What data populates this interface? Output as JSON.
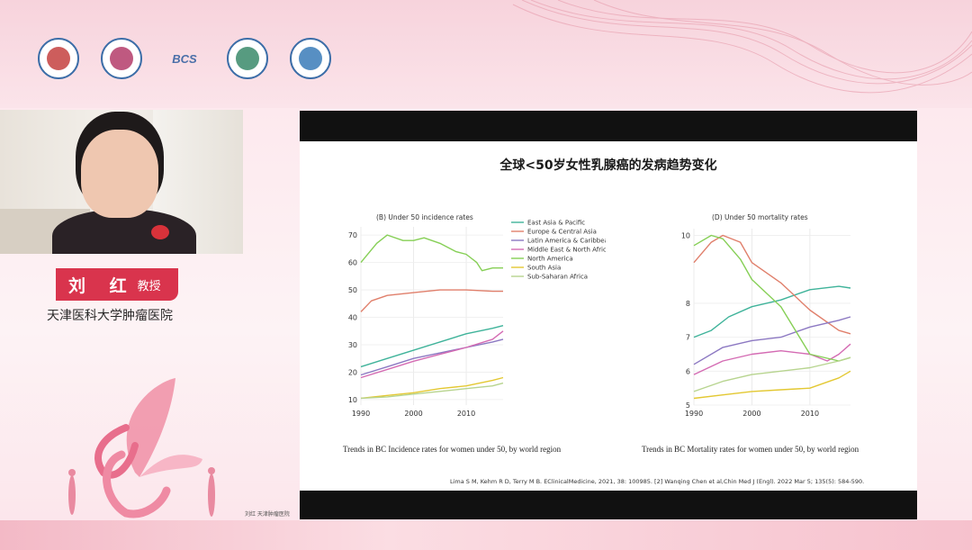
{
  "speaker": {
    "name": "刘 红",
    "title": "教授",
    "affiliation": "天津医科大学肿瘤医院"
  },
  "logos": [
    "logo-1",
    "logo-2",
    "BCS",
    "logo-4",
    "logo-5"
  ],
  "slide": {
    "title": "全球<50岁女性乳腺癌的发病趋势变化",
    "citation": "Lima S M, Kehm R D, Terry M B. EClinicalMedicine, 2021, 38: 100985. [2] Wanqing Chen et al,Chin Med J (Engl). 2022 Mar 5; 135(5): 584-590."
  },
  "participant_label": "刘红 天津肿瘤医院",
  "chart_data": [
    {
      "type": "line",
      "title": "(B) Under 50 incidence rates",
      "caption": "Trends in BC Incidence rates for women under 50, by world region",
      "xlim": [
        1990,
        2017
      ],
      "ylim": [
        8,
        73
      ],
      "xticks": [
        1990,
        2000,
        2010
      ],
      "yticks": [
        10,
        20,
        30,
        40,
        50,
        60,
        70
      ],
      "legend_position": "top-right",
      "series": [
        {
          "name": "East Asia & Pacific",
          "color": "#3fb39a",
          "x": [
            1990,
            1995,
            2000,
            2005,
            2010,
            2015,
            2017
          ],
          "y": [
            22,
            25,
            28,
            31,
            34,
            36,
            37
          ]
        },
        {
          "name": "Europe & Central Asia",
          "color": "#e07f6b",
          "x": [
            1990,
            1992,
            1995,
            2000,
            2005,
            2010,
            2015,
            2017
          ],
          "y": [
            42,
            46,
            48,
            49,
            50,
            50,
            49.5,
            49.5
          ]
        },
        {
          "name": "Latin America & Caribbean",
          "color": "#8c78c2",
          "x": [
            1990,
            1995,
            2000,
            2005,
            2010,
            2015,
            2017
          ],
          "y": [
            19,
            22,
            25,
            27,
            29,
            31,
            32
          ]
        },
        {
          "name": "Middle East & North Africa",
          "color": "#d46bb3",
          "x": [
            1990,
            1995,
            2000,
            2005,
            2010,
            2015,
            2017
          ],
          "y": [
            18,
            21,
            24,
            26.5,
            29,
            32,
            35
          ]
        },
        {
          "name": "North America",
          "color": "#86cf56",
          "x": [
            1990,
            1993,
            1995,
            1998,
            2000,
            2002,
            2005,
            2008,
            2010,
            2012,
            2013,
            2015,
            2017
          ],
          "y": [
            60,
            67,
            70,
            68,
            68,
            69,
            67,
            64,
            63,
            60,
            57,
            58,
            58
          ]
        },
        {
          "name": "South Asia",
          "color": "#e3c832",
          "x": [
            1990,
            1995,
            2000,
            2005,
            2010,
            2015,
            2017
          ],
          "y": [
            10.5,
            11.5,
            12.5,
            14,
            15,
            17,
            18
          ]
        },
        {
          "name": "Sub-Saharan Africa",
          "color": "#b7d48f",
          "x": [
            1990,
            1995,
            2000,
            2005,
            2010,
            2015,
            2017
          ],
          "y": [
            10.5,
            11,
            12,
            13,
            14,
            15,
            16
          ]
        }
      ]
    },
    {
      "type": "line",
      "title": "(D) Under 50 mortality rates",
      "caption": "Trends in BC Mortality rates for women under 50, by world region",
      "xlim": [
        1990,
        2017
      ],
      "ylim": [
        5,
        10.2
      ],
      "xticks": [
        1990,
        2000,
        2010
      ],
      "yticks": [
        5,
        6,
        7,
        8,
        10
      ],
      "series": [
        {
          "name": "East Asia & Pacific",
          "color": "#3fb39a",
          "x": [
            1990,
            1993,
            1996,
            2000,
            2005,
            2010,
            2015,
            2017
          ],
          "y": [
            7.0,
            7.2,
            7.6,
            7.9,
            8.1,
            8.4,
            8.5,
            8.45
          ]
        },
        {
          "name": "Europe & Central Asia",
          "color": "#e07f6b",
          "x": [
            1990,
            1993,
            1995,
            1998,
            2000,
            2005,
            2010,
            2015,
            2017
          ],
          "y": [
            9.2,
            9.8,
            10.0,
            9.8,
            9.2,
            8.6,
            7.8,
            7.2,
            7.1
          ]
        },
        {
          "name": "Latin America & Caribbean",
          "color": "#8c78c2",
          "x": [
            1990,
            1995,
            2000,
            2005,
            2010,
            2015,
            2017
          ],
          "y": [
            6.2,
            6.7,
            6.9,
            7.0,
            7.3,
            7.5,
            7.6
          ]
        },
        {
          "name": "Middle East & North Africa",
          "color": "#d46bb3",
          "x": [
            1990,
            1995,
            2000,
            2005,
            2010,
            2013,
            2015,
            2017
          ],
          "y": [
            5.9,
            6.3,
            6.5,
            6.6,
            6.5,
            6.3,
            6.5,
            6.8
          ]
        },
        {
          "name": "North America",
          "color": "#86cf56",
          "x": [
            1990,
            1993,
            1995,
            1998,
            2000,
            2005,
            2010,
            2015,
            2017
          ],
          "y": [
            9.7,
            10.0,
            9.9,
            9.3,
            8.7,
            7.9,
            6.5,
            6.3,
            6.4
          ]
        },
        {
          "name": "South Asia",
          "color": "#e3c832",
          "x": [
            1990,
            1995,
            2000,
            2005,
            2010,
            2015,
            2017
          ],
          "y": [
            5.2,
            5.3,
            5.4,
            5.45,
            5.5,
            5.8,
            6.0
          ]
        },
        {
          "name": "Sub-Saharan Africa",
          "color": "#b7d48f",
          "x": [
            1990,
            1995,
            2000,
            2005,
            2010,
            2015,
            2017
          ],
          "y": [
            5.4,
            5.7,
            5.9,
            6.0,
            6.1,
            6.3,
            6.4
          ]
        }
      ]
    }
  ]
}
